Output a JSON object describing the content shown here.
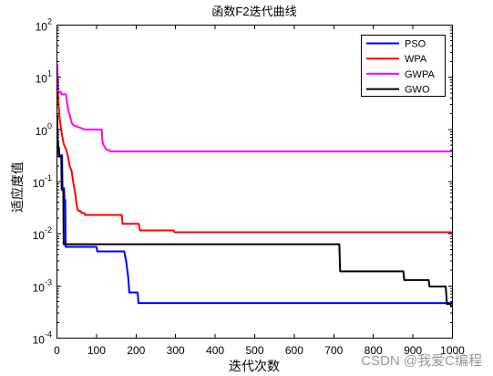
{
  "chart_data": {
    "type": "line",
    "title": "函数F2迭代曲线",
    "xlabel": "迭代次数",
    "ylabel": "适应度值",
    "xlim": [
      0,
      1000
    ],
    "ylim": [
      0.0001,
      100
    ],
    "yscale": "log",
    "grid": false,
    "legend_position": "top-right",
    "x_ticks": [
      {
        "value": 0,
        "label": "0"
      },
      {
        "value": 100,
        "label": "100"
      },
      {
        "value": 200,
        "label": "200"
      },
      {
        "value": 300,
        "label": "300"
      },
      {
        "value": 400,
        "label": "400"
      },
      {
        "value": 500,
        "label": "500"
      },
      {
        "value": 600,
        "label": "600"
      },
      {
        "value": 700,
        "label": "700"
      },
      {
        "value": 800,
        "label": "800"
      },
      {
        "value": 900,
        "label": "900"
      },
      {
        "value": 1000,
        "label": "1000"
      }
    ],
    "y_ticks": [
      {
        "value": 0.0001,
        "base": "10",
        "exponent": "-4"
      },
      {
        "value": 0.001,
        "base": "10",
        "exponent": "-3"
      },
      {
        "value": 0.01,
        "base": "10",
        "exponent": "-2"
      },
      {
        "value": 0.1,
        "base": "10",
        "exponent": "-1"
      },
      {
        "value": 1,
        "base": "10",
        "exponent": "0"
      },
      {
        "value": 10,
        "base": "10",
        "exponent": "1"
      },
      {
        "value": 100,
        "base": "10",
        "exponent": "2"
      }
    ],
    "series": [
      {
        "name": "PSO",
        "color": "#0000ff",
        "points": [
          [
            1,
            0.58
          ],
          [
            3,
            0.58
          ],
          [
            4,
            0.32
          ],
          [
            13,
            0.32
          ],
          [
            14,
            0.075
          ],
          [
            18,
            0.075
          ],
          [
            19,
            0.045
          ],
          [
            21,
            0.045
          ],
          [
            22,
            0.0056
          ],
          [
            100,
            0.0056
          ],
          [
            102,
            0.0046
          ],
          [
            170,
            0.0046
          ],
          [
            175,
            0.003
          ],
          [
            180,
            0.0015
          ],
          [
            183,
            0.00075
          ],
          [
            204,
            0.00075
          ],
          [
            206,
            0.00047
          ],
          [
            1000,
            0.00047
          ]
        ]
      },
      {
        "name": "WPA",
        "color": "#ff0000",
        "points": [
          [
            1,
            12
          ],
          [
            2,
            6
          ],
          [
            4,
            3
          ],
          [
            7,
            1.6
          ],
          [
            10,
            1.1
          ],
          [
            14,
            0.7
          ],
          [
            18,
            0.5
          ],
          [
            23,
            0.42
          ],
          [
            28,
            0.3
          ],
          [
            32,
            0.2
          ],
          [
            37,
            0.16
          ],
          [
            41,
            0.1
          ],
          [
            46,
            0.06
          ],
          [
            50,
            0.035
          ],
          [
            53,
            0.028
          ],
          [
            60,
            0.027
          ],
          [
            63,
            0.025
          ],
          [
            69,
            0.025
          ],
          [
            71,
            0.023
          ],
          [
            164,
            0.023
          ],
          [
            166,
            0.0155
          ],
          [
            207,
            0.0155
          ],
          [
            210,
            0.0116
          ],
          [
            295,
            0.0116
          ],
          [
            297,
            0.0107
          ],
          [
            1000,
            0.0107
          ]
        ]
      },
      {
        "name": "GWPA",
        "color": "#ff00ff",
        "points": [
          [
            1,
            18
          ],
          [
            2,
            10
          ],
          [
            4,
            5.2
          ],
          [
            10,
            5.2
          ],
          [
            11,
            4.7
          ],
          [
            23,
            4.7
          ],
          [
            25,
            3.4
          ],
          [
            28,
            2.5
          ],
          [
            33,
            1.8
          ],
          [
            38,
            1.3
          ],
          [
            42,
            1.2
          ],
          [
            55,
            1.1
          ],
          [
            70,
            1.0
          ],
          [
            113,
            1.0
          ],
          [
            115,
            0.6
          ],
          [
            118,
            0.5
          ],
          [
            124,
            0.42
          ],
          [
            132,
            0.39
          ],
          [
            140,
            0.38
          ],
          [
            1000,
            0.38
          ]
        ]
      },
      {
        "name": "GWO",
        "color": "#000000",
        "points": [
          [
            1,
            1.9
          ],
          [
            2,
            0.45
          ],
          [
            5,
            0.45
          ],
          [
            6,
            0.3
          ],
          [
            11,
            0.3
          ],
          [
            12,
            0.07
          ],
          [
            16,
            0.07
          ],
          [
            17,
            0.0063
          ],
          [
            714,
            0.0063
          ],
          [
            716,
            0.0019
          ],
          [
            876,
            0.0019
          ],
          [
            878,
            0.0013
          ],
          [
            940,
            0.0013
          ],
          [
            942,
            0.00098
          ],
          [
            983,
            0.00098
          ],
          [
            986,
            0.00045
          ],
          [
            995,
            0.00045
          ],
          [
            997,
            0.00041
          ],
          [
            1000,
            0.00041
          ]
        ]
      }
    ]
  },
  "watermark": {
    "text": "CSDN @我爱C编程"
  }
}
